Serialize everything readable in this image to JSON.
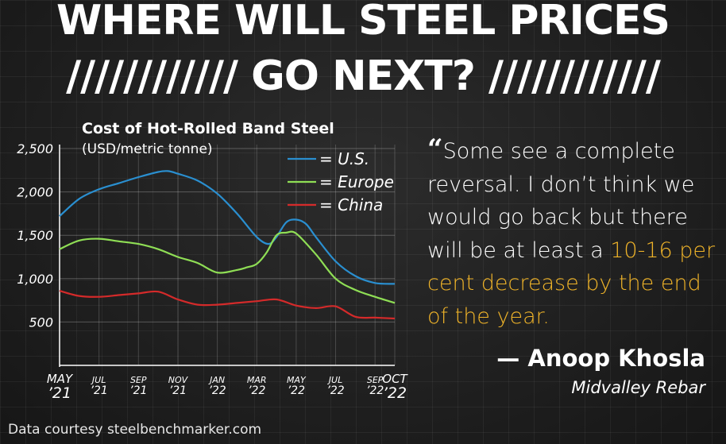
{
  "headline": {
    "line1": "WHERE WILL STEEL PRICES",
    "line2": "//////////// GO NEXT? ////////////"
  },
  "quote": {
    "open_mark": "“",
    "text": "Some see a complete reversal. I don’t think we would go back but there will be at least a ",
    "highlight": "10-16 per cent decrease by the end of the year."
  },
  "attribution": {
    "name": "— Anoop Khosla",
    "org": "Midvalley Rebar"
  },
  "source": "Data courtesy steelbenchmarker.com",
  "colors": {
    "us": "#2a8fd0",
    "europe": "#8fde55",
    "china": "#d42a2a",
    "highlight": "#f0b429"
  },
  "chart_data": {
    "type": "line",
    "title": "Cost of Hot-Rolled Band Steel",
    "subtitle": "(USD/metric tonne)",
    "xlabel": "",
    "ylabel": "",
    "ylim": [
      0,
      2500
    ],
    "yticks": [
      {
        "value": 2500,
        "label": "2,500"
      },
      {
        "value": 2000,
        "label": "2,000"
      },
      {
        "value": 1500,
        "label": "1,500"
      },
      {
        "value": 1000,
        "label": "1,000"
      },
      {
        "value": 500,
        "label": "500"
      }
    ],
    "xlim": [
      0,
      17
    ],
    "xticks": [
      {
        "pos": 0,
        "label": [
          "MAY",
          "’21"
        ],
        "big": true
      },
      {
        "pos": 2,
        "label": [
          "JUL",
          "’21"
        ],
        "big": false
      },
      {
        "pos": 4,
        "label": [
          "SEP",
          "’21"
        ],
        "big": false
      },
      {
        "pos": 6,
        "label": [
          "NOV",
          "’21"
        ],
        "big": false
      },
      {
        "pos": 8,
        "label": [
          "JAN",
          "’22"
        ],
        "big": false
      },
      {
        "pos": 10,
        "label": [
          "MAR",
          "’22"
        ],
        "big": false
      },
      {
        "pos": 12,
        "label": [
          "MAY",
          "’22"
        ],
        "big": false
      },
      {
        "pos": 14,
        "label": [
          "JUL",
          "’22"
        ],
        "big": false
      },
      {
        "pos": 16,
        "label": [
          "SEP",
          "’22"
        ],
        "big": false
      },
      {
        "pos": 17,
        "label": [
          "OCT",
          "’22"
        ],
        "big": true
      }
    ],
    "legend_position": "top-right",
    "series": [
      {
        "name": "= U.S.",
        "key": "us",
        "x": [
          0,
          1,
          2,
          3,
          4,
          5,
          5.5,
          6,
          7,
          8,
          9,
          10,
          10.6,
          11,
          11.5,
          12,
          12.5,
          13,
          14,
          15,
          16,
          17
        ],
        "values": [
          1720,
          1920,
          2030,
          2100,
          2170,
          2230,
          2240,
          2210,
          2130,
          1980,
          1750,
          1480,
          1400,
          1480,
          1650,
          1680,
          1630,
          1480,
          1200,
          1030,
          950,
          940
        ]
      },
      {
        "name": "= Europe",
        "key": "europe",
        "x": [
          0,
          1,
          2,
          3,
          4,
          5,
          6,
          7,
          8,
          9,
          9.5,
          10,
          10.5,
          11,
          11.5,
          12,
          13,
          14,
          15,
          16,
          17
        ],
        "values": [
          1340,
          1440,
          1460,
          1430,
          1400,
          1340,
          1250,
          1180,
          1070,
          1100,
          1130,
          1170,
          1300,
          1500,
          1530,
          1520,
          1280,
          1000,
          870,
          790,
          720
        ]
      },
      {
        "name": "= China",
        "key": "china",
        "x": [
          0,
          1,
          2,
          3,
          4,
          5,
          6,
          7,
          8,
          9,
          10,
          11,
          12,
          13,
          14,
          15,
          16,
          17
        ],
        "values": [
          860,
          800,
          790,
          810,
          830,
          850,
          760,
          700,
          700,
          720,
          740,
          760,
          690,
          660,
          680,
          560,
          550,
          540
        ]
      }
    ]
  }
}
